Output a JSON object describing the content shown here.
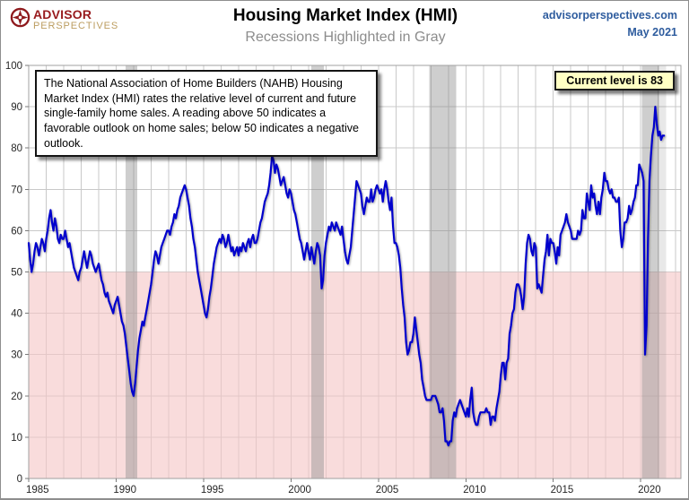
{
  "header": {
    "logo_line1": "ADVISOR",
    "logo_line2": "PERSPECTIVES",
    "title": "Housing Market Index (HMI)",
    "subtitle": "Recessions Highlighted in Gray",
    "website": "advisorperspectives.com",
    "date": "May 2021"
  },
  "annotation_box": {
    "text": "The National Association of Home Builders (NAHB) Housing Market Index (HMI) rates the relative level of current and future single-family home sales. A reading above 50 indicates a favorable outlook on home sales; below 50 indicates a negative outlook."
  },
  "callout": {
    "text": "Current level is 83"
  },
  "chart_data": {
    "type": "line",
    "title": "Housing Market Index (HMI)",
    "subtitle": "Recessions Highlighted in Gray",
    "x_start_year": 1985,
    "frequency": "monthly",
    "xlim": [
      1985,
      2022.3
    ],
    "ylim": [
      0,
      100
    ],
    "yticks": [
      0,
      10,
      20,
      30,
      40,
      50,
      60,
      70,
      80,
      90,
      100
    ],
    "xticks": [
      1985,
      1990,
      1995,
      2000,
      2005,
      2010,
      2015,
      2020
    ],
    "grid": "vertical every 1 year, horizontal every 10 units",
    "legend": "none",
    "threshold": 50,
    "threshold_note": "area below 50 shaded pink = negative outlook",
    "current_level": 83,
    "colors": {
      "line": "#0000CD",
      "below_threshold_fill": "#F6C6C6",
      "recession_band": "#8A8A8A",
      "gridline": "#C9C9C9",
      "plot_border": "#A0A0A0",
      "axis_label": "#262626"
    },
    "recessions": [
      {
        "start": 1990.54,
        "end": 1991.21
      },
      {
        "start": 2001.17,
        "end": 2001.88
      },
      {
        "start": 2007.92,
        "end": 2009.46
      },
      {
        "start": 2020.08,
        "end": 2021.08
      },
      {
        "start": 2021.08,
        "end": 2021.46,
        "partial": true
      }
    ],
    "series": [
      {
        "name": "NAHB Housing Market Index",
        "color": "#0000CD",
        "values": [
          57,
          53,
          50,
          52,
          55,
          57,
          56,
          54,
          56,
          58,
          57,
          55,
          58,
          60,
          63,
          65,
          62,
          60,
          63,
          61,
          58,
          57,
          59,
          58,
          58,
          60,
          58,
          56,
          57,
          55,
          53,
          51,
          50,
          49,
          48,
          50,
          51,
          53,
          55,
          53,
          51,
          53,
          55,
          54,
          52,
          51,
          50,
          51,
          52,
          50,
          48,
          47,
          45,
          44,
          45,
          43,
          42,
          41,
          40,
          42,
          43,
          44,
          42,
          40,
          38,
          37,
          35,
          32,
          29,
          26,
          23,
          21,
          20,
          23,
          27,
          31,
          34,
          36,
          38,
          37,
          39,
          41,
          43,
          45,
          47,
          50,
          53,
          55,
          54,
          52,
          54,
          56,
          57,
          58,
          59,
          60,
          60,
          59,
          61,
          62,
          64,
          63,
          65,
          66,
          68,
          69,
          70,
          71,
          70,
          68,
          66,
          63,
          61,
          58,
          56,
          53,
          50,
          48,
          46,
          44,
          42,
          40,
          39,
          41,
          44,
          46,
          49,
          52,
          54,
          56,
          57,
          58,
          57,
          59,
          58,
          56,
          57,
          59,
          57,
          55,
          56,
          54,
          55,
          56,
          54,
          56,
          55,
          57,
          56,
          55,
          57,
          58,
          56,
          58,
          59,
          57,
          57,
          58,
          60,
          62,
          63,
          65,
          67,
          68,
          69,
          71,
          74,
          78,
          77,
          74,
          76,
          75,
          73,
          71,
          72,
          73,
          71,
          69,
          68,
          70,
          69,
          67,
          65,
          64,
          62,
          60,
          58,
          57,
          55,
          53,
          55,
          57,
          55,
          53,
          56,
          54,
          52,
          55,
          57,
          56,
          54,
          46,
          48,
          54,
          57,
          59,
          61,
          60,
          62,
          61,
          60,
          62,
          61,
          60,
          59,
          61,
          58,
          55,
          53,
          52,
          54,
          56,
          60,
          64,
          68,
          72,
          71,
          70,
          69,
          66,
          64,
          66,
          68,
          67,
          67,
          70,
          67,
          68,
          70,
          71,
          70,
          69,
          70,
          67,
          70,
          72,
          70,
          67,
          65,
          68,
          61,
          57,
          57,
          56,
          54,
          51,
          46,
          42,
          39,
          33,
          30,
          31,
          33,
          33,
          35,
          39,
          36,
          33,
          30,
          28,
          24,
          22,
          20,
          19,
          19,
          19,
          19,
          20,
          20,
          20,
          19,
          18,
          16,
          16,
          17,
          14,
          9,
          9,
          8,
          9,
          9,
          14,
          16,
          15,
          17,
          18,
          19,
          18,
          17,
          16,
          15,
          17,
          15,
          19,
          22,
          16,
          14,
          13,
          13,
          15,
          16,
          16,
          16,
          16,
          17,
          16,
          16,
          13,
          15,
          15,
          14,
          17,
          19,
          21,
          25,
          28,
          28,
          24,
          28,
          29,
          35,
          37,
          40,
          41,
          45,
          47,
          47,
          46,
          44,
          41,
          44,
          52,
          57,
          59,
          58,
          55,
          54,
          57,
          56,
          46,
          47,
          46,
          45,
          49,
          53,
          55,
          59,
          54,
          58,
          57,
          57,
          55,
          52,
          56,
          54,
          59,
          60,
          61,
          62,
          64,
          62,
          61,
          60,
          58,
          58,
          58,
          58,
          60,
          59,
          60,
          65,
          63,
          63,
          69,
          67,
          65,
          71,
          68,
          69,
          66,
          64,
          67,
          64,
          68,
          70,
          74,
          72,
          72,
          70,
          69,
          70,
          68,
          68,
          67,
          67,
          68,
          60,
          56,
          58,
          62,
          62,
          63,
          66,
          64,
          65,
          67,
          68,
          71,
          71,
          76,
          75,
          74,
          72,
          30,
          37,
          58,
          72,
          78,
          83,
          85,
          90,
          86,
          83,
          84,
          82,
          83,
          83
        ]
      }
    ]
  }
}
